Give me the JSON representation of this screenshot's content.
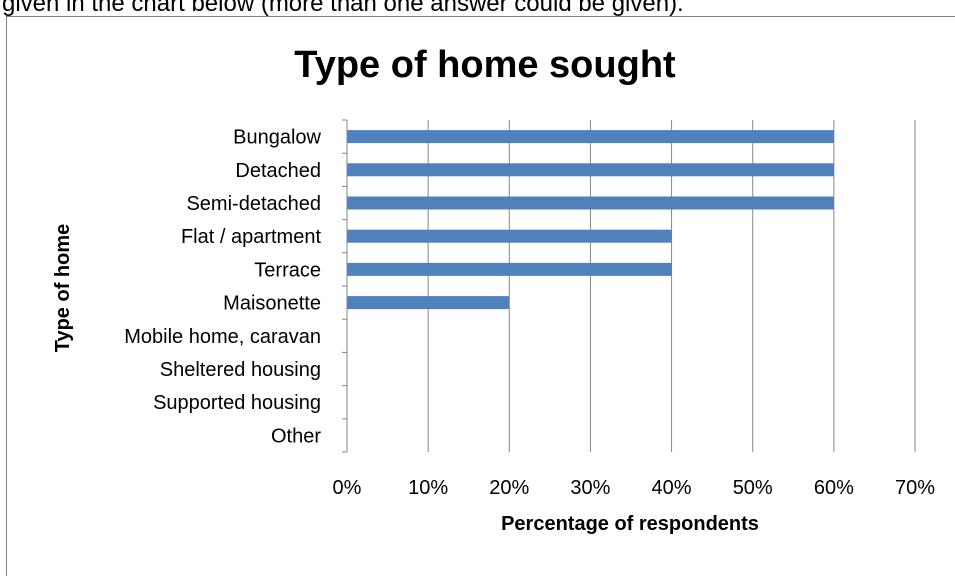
{
  "page": {
    "caption": "given in the chart below (more than one answer could be given)."
  },
  "chart_data": {
    "type": "bar",
    "orientation": "horizontal",
    "title": "Type of home sought",
    "xlabel": "Percentage of respondents",
    "ylabel": "Type of home",
    "categories": [
      "Bungalow",
      "Detached",
      "Semi-detached",
      "Flat / apartment",
      "Terrace",
      "Maisonette",
      "Mobile home, caravan",
      "Sheltered housing",
      "Supported housing",
      "Other"
    ],
    "values": [
      60,
      60,
      60,
      40,
      40,
      20,
      0,
      0,
      0,
      0
    ],
    "xlim": [
      0,
      70
    ],
    "xticks": [
      "0%",
      "10%",
      "20%",
      "30%",
      "40%",
      "50%",
      "60%",
      "70%"
    ],
    "grid": true,
    "legend": "none",
    "bar_color": "#4F81BD",
    "gridline_color": "#868686"
  }
}
